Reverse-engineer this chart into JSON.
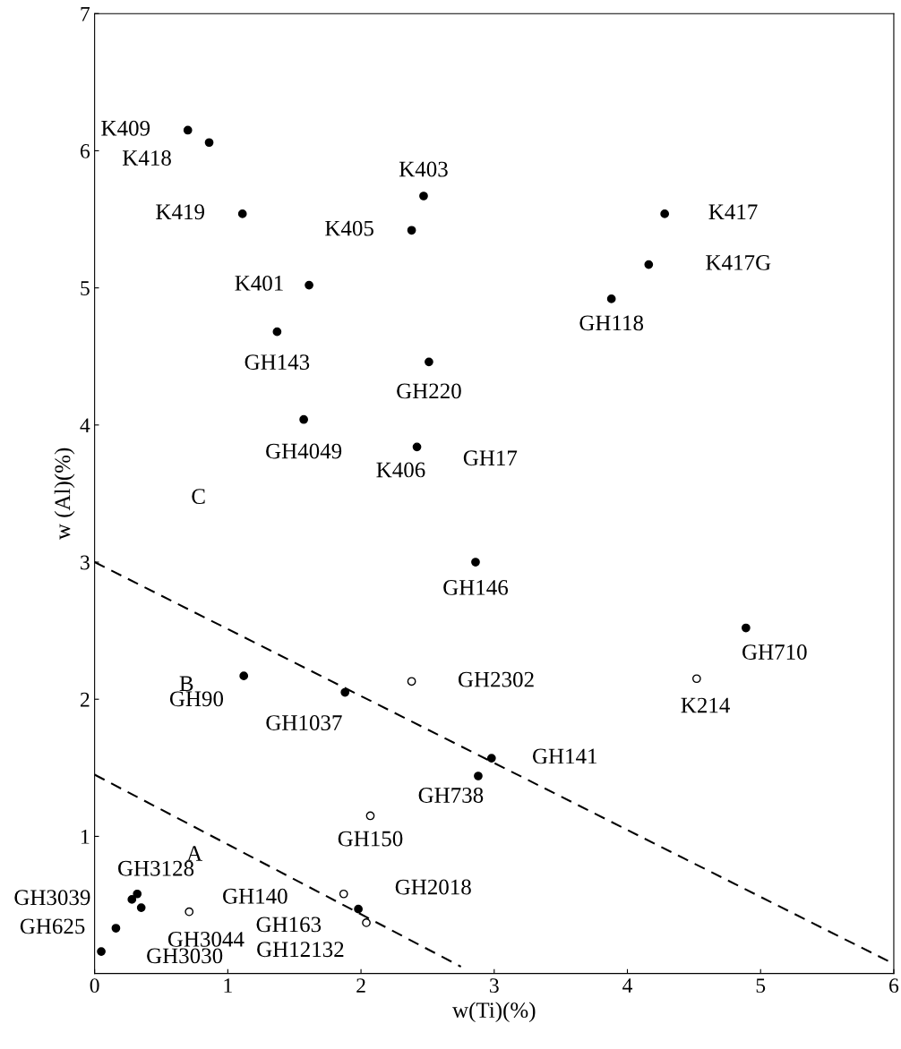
{
  "chart_data": {
    "type": "scatter",
    "xlabel": "w(Ti)(%)",
    "ylabel": "w (Al)(%)",
    "xlim": [
      0,
      6
    ],
    "ylim": [
      0,
      7
    ],
    "xticks": [
      0,
      1,
      2,
      3,
      4,
      5,
      6
    ],
    "yticks": [
      1,
      2,
      3,
      4,
      5,
      6,
      7
    ],
    "grid": false,
    "legend": false,
    "series": [
      {
        "color": "#000000",
        "marker": "circle",
        "x": [
          0.7,
          0.86,
          1.11,
          2.47,
          2.38,
          4.28,
          4.16,
          1.61,
          3.88,
          1.37,
          2.51,
          1.57,
          2.42,
          2.86,
          4.89,
          1.12,
          1.88,
          2.98,
          2.88,
          1.98,
          0.32,
          0.28,
          0.35,
          0.16,
          0.05
        ],
        "values": [
          6.15,
          6.06,
          5.54,
          5.67,
          5.42,
          5.54,
          5.17,
          5.02,
          4.92,
          4.68,
          4.46,
          4.04,
          3.84,
          3.0,
          2.52,
          2.17,
          2.05,
          1.57,
          1.44,
          0.47,
          0.58,
          0.54,
          0.48,
          0.33,
          0.16
        ]
      },
      {
        "color": "#ffffff",
        "marker": "circle",
        "x": [
          4.52,
          2.38,
          2.07,
          1.87,
          2.04,
          0.71
        ],
        "values": [
          2.15,
          2.13,
          1.15,
          0.58,
          0.37,
          0.45
        ]
      },
      {
        "type": "line",
        "color": "#000000",
        "line_style": "dashed",
        "marker": "none",
        "x": [
          0,
          6
        ],
        "values": [
          3.0,
          0.07
        ]
      },
      {
        "type": "line",
        "color": "#000000",
        "line_style": "dashed",
        "marker": "none",
        "x": [
          0,
          2.75
        ],
        "values": [
          1.45,
          0.05
        ]
      }
    ],
    "annotations": [
      {
        "text": "K409",
        "x": 0.7,
        "y": 6.15
      },
      {
        "text": "K418",
        "x": 0.86,
        "y": 6.06
      },
      {
        "text": "K419",
        "x": 1.11,
        "y": 5.54
      },
      {
        "text": "K403",
        "x": 2.47,
        "y": 5.67
      },
      {
        "text": "K405",
        "x": 2.38,
        "y": 5.42
      },
      {
        "text": "K417",
        "x": 4.28,
        "y": 5.54
      },
      {
        "text": "K417G",
        "x": 4.16,
        "y": 5.17
      },
      {
        "text": "K401",
        "x": 1.61,
        "y": 5.02
      },
      {
        "text": "GH118",
        "x": 3.88,
        "y": 4.92
      },
      {
        "text": "GH143",
        "x": 1.37,
        "y": 4.68
      },
      {
        "text": "GH220",
        "x": 2.51,
        "y": 4.46
      },
      {
        "text": "GH4049",
        "x": 1.57,
        "y": 4.04
      },
      {
        "text": "K406",
        "x": 2.42,
        "y": 3.84
      },
      {
        "text": "GH146",
        "x": 2.86,
        "y": 3.0
      },
      {
        "text": "GH710",
        "x": 4.89,
        "y": 2.52
      },
      {
        "text": "GH90",
        "x": 1.12,
        "y": 2.17
      },
      {
        "text": "GH1037",
        "x": 1.88,
        "y": 2.05
      },
      {
        "text": "GH141",
        "x": 2.98,
        "y": 1.57
      },
      {
        "text": "GH738",
        "x": 2.88,
        "y": 1.44
      },
      {
        "text": "GH163",
        "x": 1.98,
        "y": 0.47
      },
      {
        "text": "GH3128",
        "x": 0.32,
        "y": 0.58
      },
      {
        "text": "GH3039",
        "x": 0.28,
        "y": 0.54
      },
      {
        "text": "GH3044",
        "x": 0.35,
        "y": 0.48
      },
      {
        "text": "GH625",
        "x": 0.16,
        "y": 0.33
      },
      {
        "text": "GH3030",
        "x": 0.05,
        "y": 0.16
      },
      {
        "text": "K214",
        "x": 4.52,
        "y": 2.15
      },
      {
        "text": "GH2302",
        "x": 2.38,
        "y": 2.13
      },
      {
        "text": "GH150",
        "x": 2.07,
        "y": 1.15
      },
      {
        "text": "GH2018",
        "x": 1.87,
        "y": 0.58
      },
      {
        "text": "GH12132",
        "x": 2.04,
        "y": 0.37
      },
      {
        "text": "GH140",
        "x": 0.71,
        "y": 0.45
      },
      "GH17",
      "C",
      "B",
      "A"
    ]
  }
}
